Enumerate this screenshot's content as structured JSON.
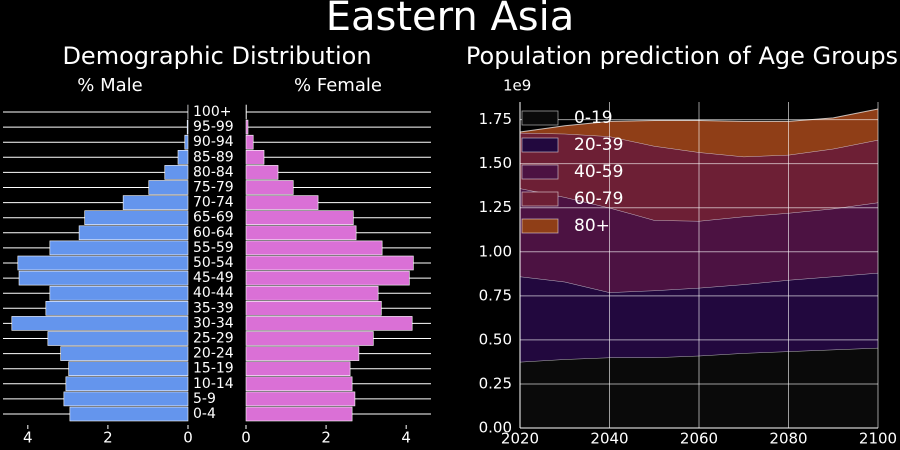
{
  "title": "Eastern Asia",
  "pyramid_title": "Demographic Distribution",
  "chart_data": [
    {
      "type": "barh",
      "title": "% Male",
      "categories": [
        "0-4",
        "5-9",
        "10-14",
        "15-19",
        "20-24",
        "25-29",
        "30-34",
        "35-39",
        "40-44",
        "45-49",
        "50-54",
        "55-59",
        "60-64",
        "65-69",
        "70-74",
        "75-79",
        "80-84",
        "85-89",
        "90-94",
        "95-99",
        "100+"
      ],
      "values": [
        2.95,
        3.1,
        3.05,
        2.98,
        3.18,
        3.5,
        4.4,
        3.55,
        3.45,
        4.22,
        4.25,
        3.45,
        2.72,
        2.58,
        1.62,
        0.98,
        0.58,
        0.25,
        0.08,
        0.02,
        0.003
      ],
      "color": "#6495ed",
      "xlim": [
        4.62,
        0
      ],
      "xticks": [
        4,
        2,
        0
      ],
      "grid": true
    },
    {
      "type": "barh",
      "title": "% Female",
      "values": [
        2.65,
        2.72,
        2.65,
        2.6,
        2.82,
        3.18,
        4.15,
        3.38,
        3.3,
        4.08,
        4.18,
        3.4,
        2.75,
        2.68,
        1.8,
        1.18,
        0.8,
        0.45,
        0.18,
        0.05,
        0.01
      ],
      "color": "#da70d6",
      "xlim": [
        0,
        4.62
      ],
      "xticks": [
        0,
        2,
        4
      ],
      "grid": true
    },
    {
      "type": "area",
      "title": "Population prediction of Age Groups",
      "stacked": true,
      "x": [
        2020,
        2030,
        2040,
        2050,
        2060,
        2070,
        2080,
        2090,
        2100
      ],
      "series": [
        {
          "name": "0-19",
          "color": "#0a0a0a",
          "values": [
            0.375,
            0.39,
            0.4,
            0.4,
            0.41,
            0.425,
            0.435,
            0.445,
            0.455
          ]
        },
        {
          "name": "20-39",
          "color": "#22083e",
          "values": [
            0.485,
            0.44,
            0.37,
            0.38,
            0.385,
            0.39,
            0.405,
            0.415,
            0.425
          ]
        },
        {
          "name": "40-59",
          "color": "#4c1242",
          "values": [
            0.5,
            0.48,
            0.48,
            0.4,
            0.38,
            0.385,
            0.38,
            0.385,
            0.4
          ]
        },
        {
          "name": "60-79",
          "color": "#6d1f35",
          "values": [
            0.315,
            0.36,
            0.405,
            0.42,
            0.39,
            0.34,
            0.33,
            0.34,
            0.355
          ]
        },
        {
          "name": "80+",
          "color": "#8f3e17",
          "values": [
            0.005,
            0.045,
            0.085,
            0.145,
            0.18,
            0.2,
            0.19,
            0.175,
            0.175
          ]
        }
      ],
      "xlim": [
        2020,
        2100
      ],
      "xticks": [
        2020,
        2040,
        2060,
        2080,
        2100
      ],
      "ylim": [
        0,
        1.85
      ],
      "yticks": [
        {
          "value": 0,
          "label": "0.00"
        },
        {
          "value": 0.25,
          "label": "0.25"
        },
        {
          "value": 0.5,
          "label": "0.50"
        },
        {
          "value": 0.75,
          "label": "0.75"
        },
        {
          "value": 1,
          "label": "1.00"
        },
        {
          "value": 1.25,
          "label": "1.25"
        },
        {
          "value": 1.5,
          "label": "1.50"
        },
        {
          "value": 1.75,
          "label": "1.75"
        }
      ],
      "y_offset_label": "1e9",
      "legend": "upper left",
      "grid": true
    }
  ]
}
